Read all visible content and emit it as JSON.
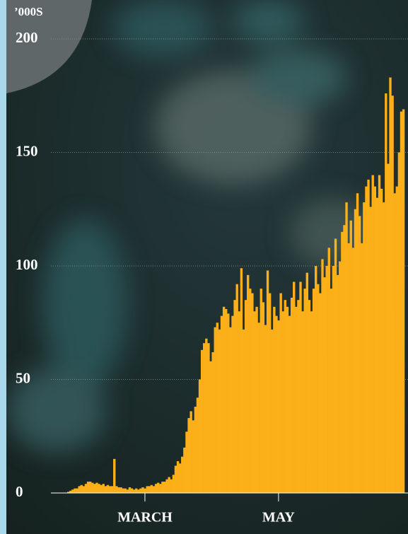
{
  "chart_data": {
    "type": "bar",
    "y_label": "’000S",
    "color": "#fbb01a",
    "categories": [
      null,
      null,
      null,
      null,
      null,
      null,
      null,
      null,
      null,
      null,
      null,
      null,
      null,
      null,
      null,
      null,
      null,
      null,
      null,
      null,
      null,
      null,
      null,
      null,
      null,
      null,
      null,
      null,
      null,
      null,
      null,
      null,
      null,
      null,
      null,
      "MARCH",
      null,
      null,
      null,
      null,
      null,
      null,
      null,
      null,
      null,
      null,
      null,
      null,
      null,
      null,
      null,
      null,
      null,
      null,
      null,
      null,
      null,
      null,
      null,
      null,
      null,
      null,
      null,
      null,
      null,
      null,
      null,
      null,
      null,
      null,
      null,
      null,
      null,
      null,
      null,
      null,
      null,
      null,
      null,
      null,
      null,
      null,
      null,
      null,
      null,
      null,
      null,
      null,
      null,
      null,
      null,
      null,
      null,
      null,
      null,
      null,
      "MAY",
      null,
      null,
      null,
      null,
      null,
      null,
      null,
      null,
      null,
      null,
      null,
      null,
      null,
      null,
      null,
      null,
      null,
      null,
      null,
      null,
      null,
      null,
      null,
      null,
      null,
      null,
      null,
      null,
      null,
      null,
      null,
      null,
      null,
      null,
      null,
      null,
      null,
      null,
      null,
      null,
      null,
      null,
      null,
      null,
      null,
      null,
      null,
      null,
      null,
      null,
      null,
      null,
      null,
      null,
      null,
      null,
      null
    ],
    "values": [
      0.5,
      1,
      1.5,
      2,
      2,
      3,
      3.5,
      3,
      4,
      5,
      5,
      4.5,
      4,
      4.5,
      4,
      3.5,
      4,
      3,
      3.5,
      3,
      3,
      15,
      3,
      2.5,
      2.5,
      2,
      2,
      1.5,
      2.5,
      2,
      1.5,
      2,
      1.5,
      2,
      2.5,
      2,
      3,
      3,
      3.5,
      3,
      4,
      4.5,
      4,
      5,
      5,
      6,
      7,
      6,
      8,
      12,
      14,
      13,
      16,
      20,
      27,
      33,
      36,
      32,
      38,
      42,
      50,
      63,
      66,
      68,
      66,
      58,
      62,
      73,
      75,
      72,
      78,
      82,
      81,
      79,
      73,
      78,
      85,
      92,
      80,
      99,
      72,
      85,
      96,
      90,
      88,
      80,
      82,
      75,
      90,
      84,
      74,
      98,
      88,
      72,
      82,
      78,
      76,
      88,
      80,
      85,
      82,
      78,
      86,
      93,
      82,
      85,
      93,
      80,
      90,
      97,
      85,
      80,
      90,
      100,
      92,
      88,
      103,
      95,
      100,
      108,
      90,
      100,
      112,
      96,
      102,
      115,
      118,
      128,
      110,
      120,
      108,
      125,
      132,
      122,
      110,
      128,
      135,
      138,
      126,
      140,
      135,
      130,
      140,
      134,
      128,
      176,
      145,
      183,
      175,
      132,
      135,
      150,
      168,
      169
    ],
    "ylim": [
      0,
      200
    ],
    "yticks": [
      0,
      50,
      100,
      150,
      200
    ],
    "grid": true
  }
}
